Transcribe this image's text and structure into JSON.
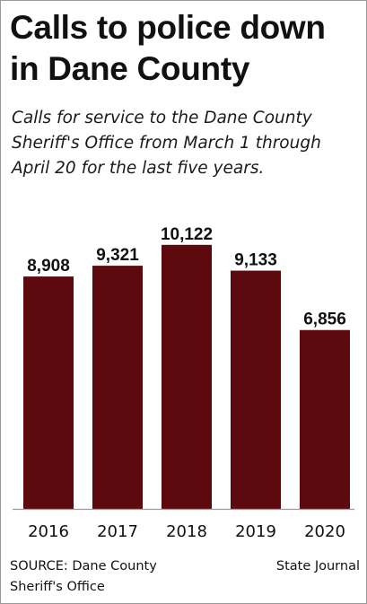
{
  "header": {
    "title_line1": "Calls to police down",
    "title_line2": "in Dane County",
    "subtitle_line1": "Calls for service to the Dane County",
    "subtitle_line2": "Sheriff's Office from March 1 through",
    "subtitle_line3": "April 20 for the last five years."
  },
  "footer": {
    "source_line1": "SOURCE: Dane County",
    "source_line2": "Sheriff's Office",
    "credit": "State Journal"
  },
  "chart_data": {
    "type": "bar",
    "title": "Calls to police down in Dane County",
    "subtitle": "Calls for service to the Dane County Sheriff's Office from March 1 through April 20 for the last five years.",
    "categories": [
      "2016",
      "2017",
      "2018",
      "2019",
      "2020"
    ],
    "values": [
      8908,
      9321,
      10122,
      9133,
      6856
    ],
    "value_labels": [
      "8,908",
      "9,321",
      "10,122",
      "9,133",
      "6,856"
    ],
    "xlabel": "",
    "ylabel": "",
    "ylim": [
      0,
      11320
    ],
    "grid": false,
    "legend": "none",
    "bar_color": "#5c0a0d"
  }
}
